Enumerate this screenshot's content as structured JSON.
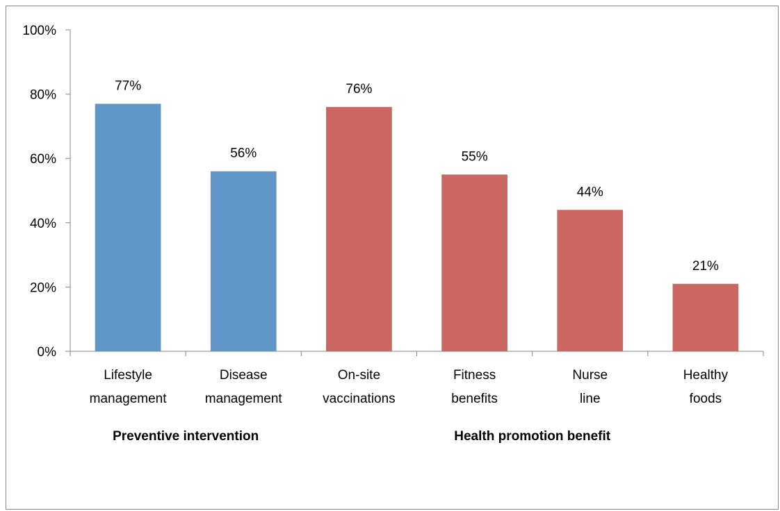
{
  "chart_data": {
    "type": "bar",
    "categories": [
      [
        "Lifestyle",
        "management"
      ],
      [
        "Disease",
        "management"
      ],
      [
        "On-site",
        "vaccinations"
      ],
      [
        "Fitness",
        "benefits"
      ],
      [
        "Nurse",
        "line"
      ],
      [
        "Healthy",
        "foods"
      ]
    ],
    "values": [
      77,
      56,
      76,
      55,
      44,
      21
    ],
    "data_labels": [
      "77%",
      "56%",
      "76%",
      "55%",
      "44%",
      "21%"
    ],
    "groups": [
      {
        "label": "Preventive intervention",
        "from": 0,
        "to": 1,
        "color": "#6096c8"
      },
      {
        "label": "Health promotion benefit",
        "from": 2,
        "to": 5,
        "color": "#cc6661"
      }
    ],
    "ylim": [
      0,
      100
    ],
    "yticks": [
      0,
      20,
      40,
      60,
      80,
      100
    ],
    "ytick_labels": [
      "0%",
      "20%",
      "40%",
      "60%",
      "80%",
      "100%"
    ],
    "grid": false,
    "legend": "none"
  }
}
